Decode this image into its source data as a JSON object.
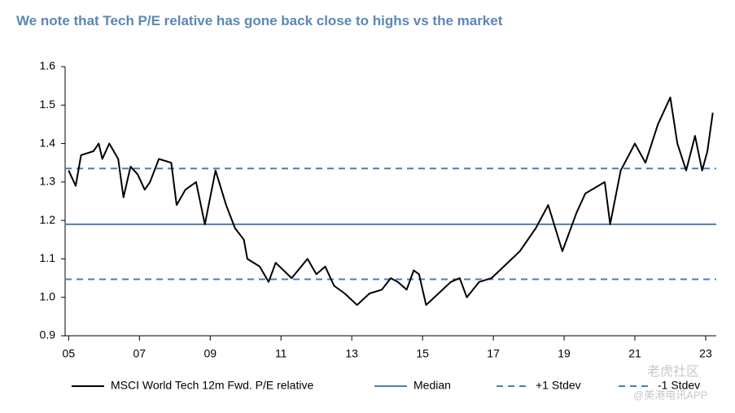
{
  "chart_data": {
    "type": "line",
    "title": "We note that Tech P/E relative has gone back close to highs vs the market",
    "x": [
      2005.0,
      2005.2,
      2005.35,
      2005.7,
      2005.85,
      2005.95,
      2006.15,
      2006.4,
      2006.55,
      2006.75,
      2006.95,
      2007.15,
      2007.3,
      2007.55,
      2007.9,
      2008.05,
      2008.3,
      2008.6,
      2008.85,
      2009.15,
      2009.45,
      2009.7,
      2009.95,
      2010.05,
      2010.4,
      2010.65,
      2010.85,
      2011.3,
      2011.75,
      2012.0,
      2012.25,
      2012.5,
      2012.8,
      2013.15,
      2013.5,
      2013.85,
      2014.1,
      2014.3,
      2014.55,
      2014.75,
      2014.9,
      2015.1,
      2015.45,
      2015.8,
      2016.05,
      2016.25,
      2016.6,
      2016.95,
      2017.75,
      2018.2,
      2018.55,
      2018.95,
      2019.35,
      2019.6,
      2020.15,
      2020.3,
      2020.6,
      2021.0,
      2021.3,
      2021.65,
      2022.0,
      2022.2,
      2022.45,
      2022.7,
      2022.9,
      2023.05,
      2023.2
    ],
    "series": [
      {
        "name": "MSCI World Tech 12m Fwd. P/E relative",
        "color": "#000000",
        "values": [
          1.33,
          1.29,
          1.37,
          1.38,
          1.4,
          1.36,
          1.4,
          1.36,
          1.26,
          1.34,
          1.32,
          1.28,
          1.3,
          1.36,
          1.35,
          1.24,
          1.28,
          1.3,
          1.19,
          1.33,
          1.24,
          1.18,
          1.15,
          1.1,
          1.08,
          1.04,
          1.09,
          1.05,
          1.1,
          1.06,
          1.08,
          1.03,
          1.01,
          0.98,
          1.01,
          1.02,
          1.05,
          1.04,
          1.02,
          1.07,
          1.06,
          0.98,
          1.01,
          1.04,
          1.05,
          1.0,
          1.04,
          1.05,
          1.12,
          1.18,
          1.24,
          1.12,
          1.22,
          1.27,
          1.3,
          1.19,
          1.33,
          1.4,
          1.35,
          1.45,
          1.52,
          1.4,
          1.33,
          1.42,
          1.33,
          1.38,
          1.48
        ]
      }
    ],
    "reference_lines": [
      {
        "name": "Median",
        "value": 1.19,
        "color": "#4a7fb0",
        "style": "solid"
      },
      {
        "name": "+1 Stdev",
        "value": 1.335,
        "color": "#4a7fb0",
        "style": "dashed"
      },
      {
        "name": "-1 Stdev",
        "value": 1.047,
        "color": "#4a7fb0",
        "style": "dashed"
      }
    ],
    "xlim": [
      2004.9,
      2023.3
    ],
    "xticks": [
      {
        "value": 2005,
        "label": "05"
      },
      {
        "value": 2007,
        "label": "07"
      },
      {
        "value": 2009,
        "label": "09"
      },
      {
        "value": 2011,
        "label": "11"
      },
      {
        "value": 2013,
        "label": "13"
      },
      {
        "value": 2015,
        "label": "15"
      },
      {
        "value": 2017,
        "label": "17"
      },
      {
        "value": 2019,
        "label": "19"
      },
      {
        "value": 2021,
        "label": "21"
      },
      {
        "value": 2023,
        "label": "23"
      }
    ],
    "ylim": [
      0.9,
      1.6
    ],
    "yticks": [
      {
        "value": 0.9,
        "label": "0.9"
      },
      {
        "value": 1.0,
        "label": "1.0"
      },
      {
        "value": 1.1,
        "label": "1.1"
      },
      {
        "value": 1.2,
        "label": "1.2"
      },
      {
        "value": 1.3,
        "label": "1.3"
      },
      {
        "value": 1.4,
        "label": "1.4"
      },
      {
        "value": 1.5,
        "label": "1.5"
      },
      {
        "value": 1.6,
        "label": "1.6"
      }
    ],
    "legend": "bottom",
    "watermark": [
      "老虎社区",
      "@美港电讯APP"
    ]
  }
}
